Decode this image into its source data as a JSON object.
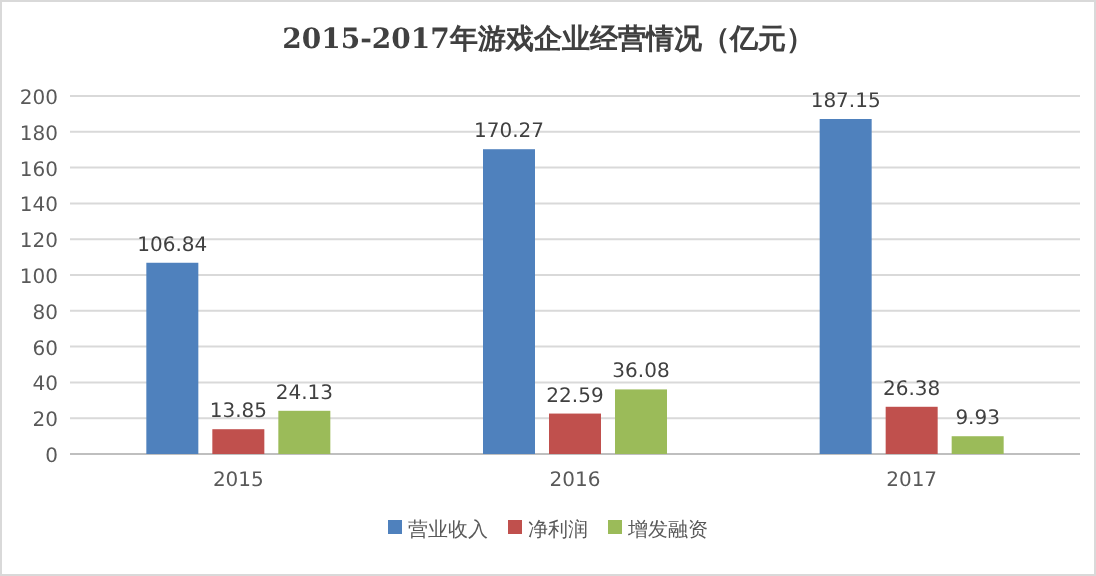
{
  "chart_data": {
    "type": "bar",
    "title": "2015-2017年游戏企业经营情况（亿元）",
    "categories": [
      "2015",
      "2016",
      "2017"
    ],
    "series": [
      {
        "name": "营业收入",
        "color": "#4f81bd",
        "values": [
          106.84,
          170.27,
          187.15
        ]
      },
      {
        "name": "净利润",
        "color": "#c0504d",
        "values": [
          13.85,
          22.59,
          26.38
        ]
      },
      {
        "name": "增发融资",
        "color": "#9bbb59",
        "values": [
          24.13,
          36.08,
          9.93
        ]
      }
    ],
    "ylim": [
      0,
      200
    ],
    "yticks": [
      0,
      20,
      40,
      60,
      80,
      100,
      120,
      140,
      160,
      180,
      200
    ],
    "grid": "y",
    "legend": "bottom",
    "data_labels": true
  }
}
